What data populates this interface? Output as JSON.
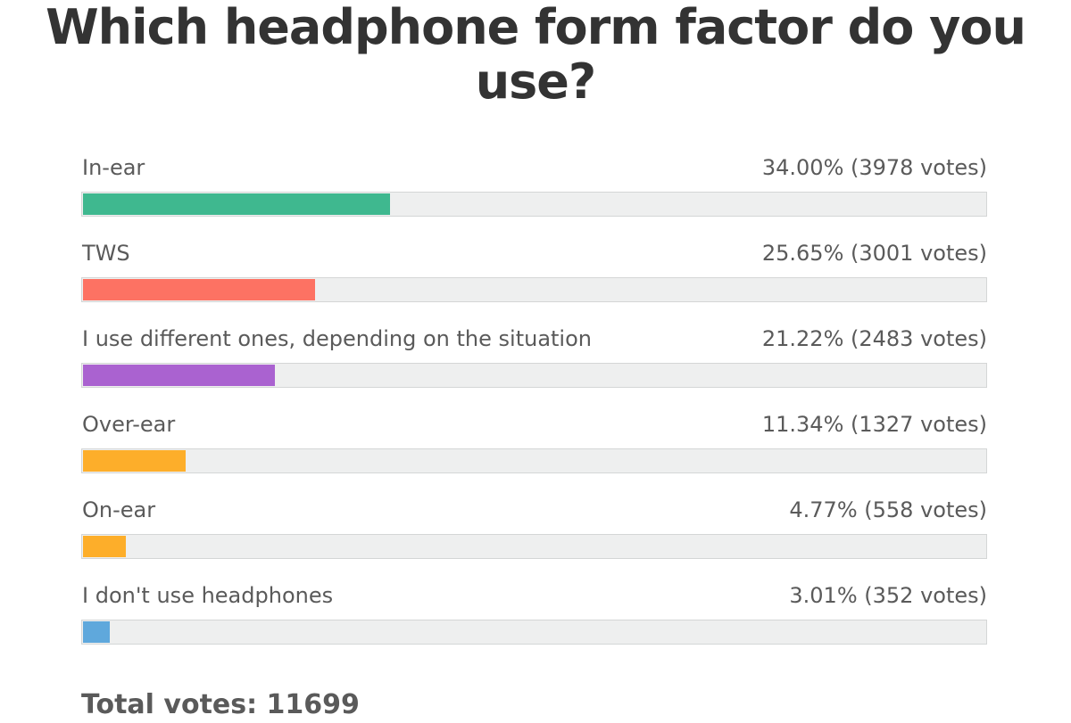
{
  "poll": {
    "title": "Which headphone form factor do you use?",
    "total_label": "Total votes: 11699"
  },
  "chart_data": {
    "type": "bar",
    "title": "Which headphone form factor do you use?",
    "categories": [
      "In-ear",
      "TWS",
      "I use different ones, depending on the situation",
      "Over-ear",
      "On-ear",
      "I don't use headphones"
    ],
    "values": [
      34.0,
      25.65,
      21.22,
      11.34,
      4.77,
      3.01
    ],
    "votes": [
      3978,
      3001,
      2483,
      1327,
      558,
      352
    ],
    "result_labels": [
      "34.00% (3978 votes)",
      "25.65% (3001 votes)",
      "21.22% (2483 votes)",
      "11.34% (1327 votes)",
      "4.77% (558 votes)",
      "3.01% (352 votes)"
    ],
    "colors": [
      "#3fb88f",
      "#fd7263",
      "#aa62d0",
      "#fdae2a",
      "#fdae2a",
      "#5fa8dc"
    ],
    "total_votes": 11699,
    "ylim": [
      0,
      100
    ],
    "grid": false
  }
}
